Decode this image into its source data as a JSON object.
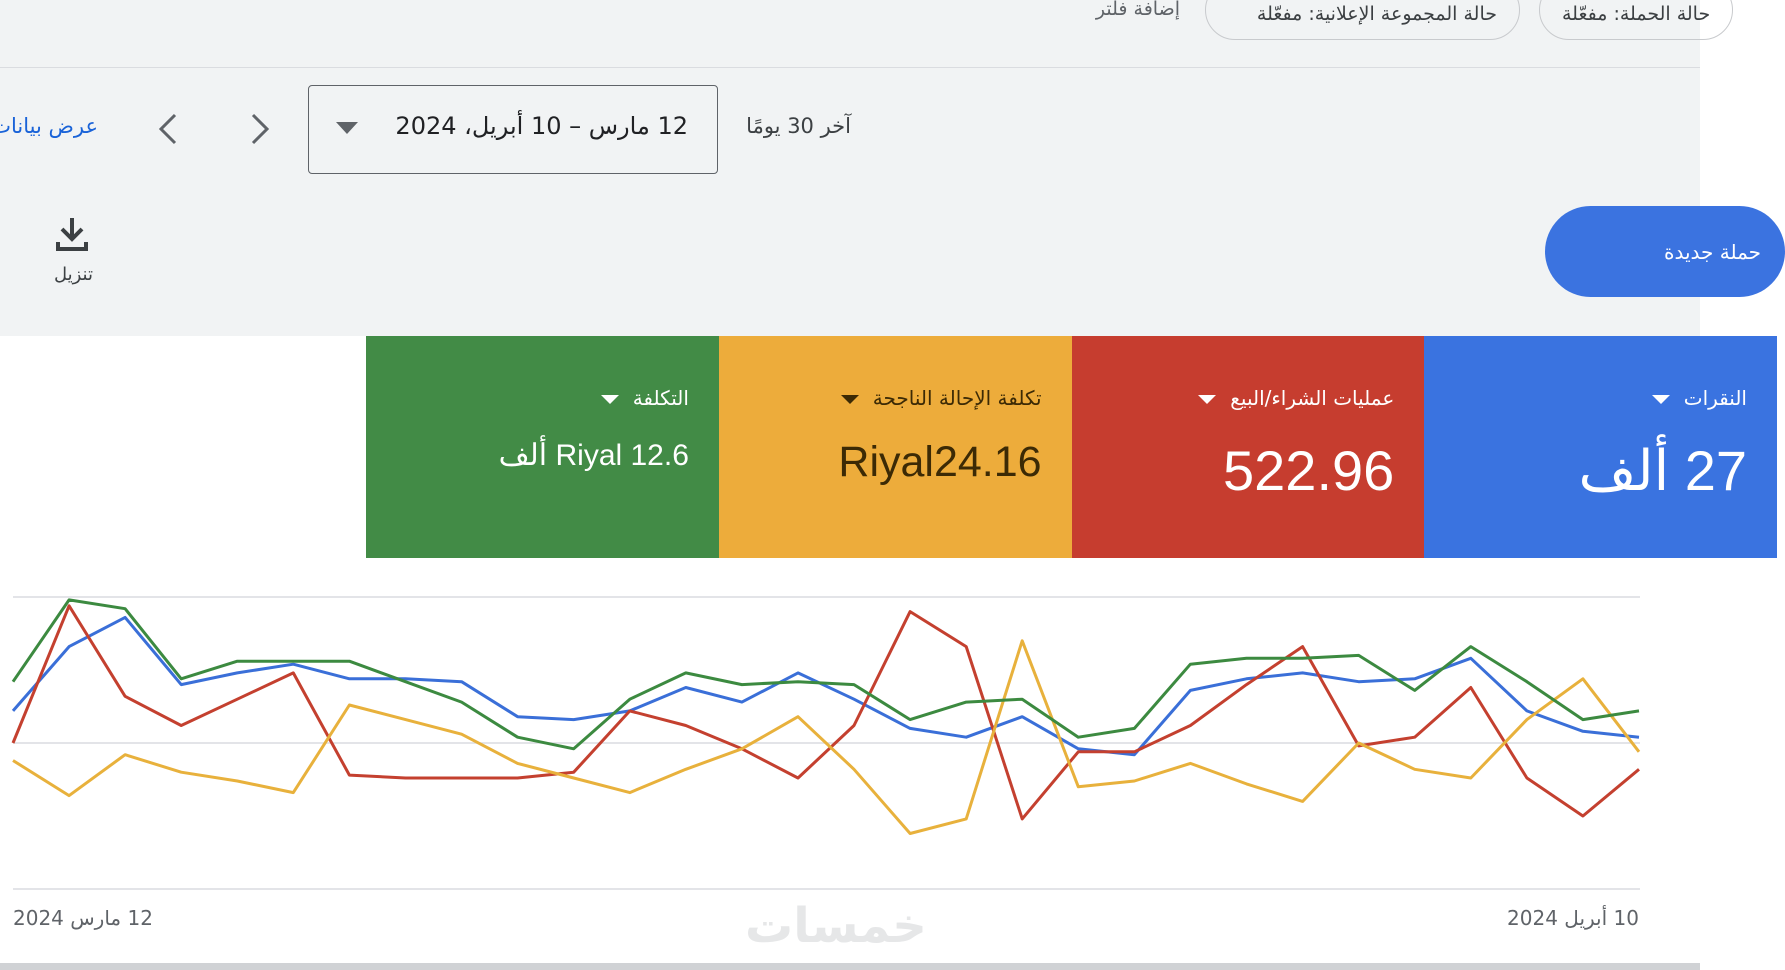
{
  "filters": {
    "chips": [
      "حالة الحملة: مفعّلة",
      "حالة المجموعة الإعلانية: مفعّلة"
    ],
    "add_filter": "إضافة فلتر"
  },
  "date_range": {
    "preset": "آخر 30 يومًا",
    "range": "12 مارس – 10 أبريل، 2024"
  },
  "view_data": "عرض بيانات",
  "download": "تنزيل",
  "new_campaign": "حملة جديدة",
  "metrics": [
    {
      "title": "النقرات",
      "value": "27 ألف",
      "color": "#3a73e0"
    },
    {
      "title": "عمليات الشراء/البيع",
      "value": "522.96",
      "color": "#c63d2f"
    },
    {
      "title": "تكلفة الإحالة الناجحة",
      "value": "Riyal24.16",
      "color": "#edac3b"
    },
    {
      "title": "التكلفة",
      "value": "Riyal 12.6 ألف",
      "color": "#428b46"
    }
  ],
  "watermark": "خمسات",
  "chart_data": {
    "type": "line",
    "categories": [
      "12 مارس 2024",
      null,
      null,
      null,
      null,
      null,
      null,
      null,
      null,
      null,
      null,
      null,
      null,
      null,
      null,
      null,
      null,
      null,
      null,
      null,
      null,
      null,
      null,
      null,
      null,
      null,
      null,
      null,
      null,
      "10 أبريل 2024"
    ],
    "ylim": [
      0,
      100
    ],
    "series": [
      {
        "color": "#3a6fd8",
        "values": [
          61,
          83,
          93,
          70,
          74,
          77,
          72,
          72,
          71,
          59,
          58,
          61,
          69,
          64,
          74,
          65,
          55,
          52,
          59,
          48,
          46,
          68,
          72,
          74,
          71,
          72,
          79,
          61,
          54,
          52
        ]
      },
      {
        "color": "#c4402f",
        "values": [
          50,
          97,
          66,
          56,
          65,
          74,
          39,
          38,
          38,
          38,
          40,
          61,
          56,
          48,
          38,
          56,
          95,
          83,
          24,
          47,
          47,
          56,
          70,
          83,
          49,
          52,
          69,
          38,
          25,
          41
        ]
      },
      {
        "color": "#e8b13c",
        "values": [
          44,
          32,
          46,
          40,
          37,
          33,
          63,
          58,
          53,
          43,
          38,
          33,
          41,
          48,
          59,
          41,
          19,
          24,
          85,
          35,
          37,
          43,
          36,
          30,
          50,
          41,
          38,
          58,
          72,
          47
        ]
      },
      {
        "color": "#3c8a40",
        "values": [
          71,
          99,
          96,
          72,
          78,
          78,
          78,
          71,
          64,
          52,
          48,
          65,
          74,
          70,
          71,
          70,
          58,
          64,
          65,
          52,
          55,
          77,
          79,
          79,
          80,
          68,
          83,
          71,
          58,
          61
        ]
      }
    ]
  }
}
